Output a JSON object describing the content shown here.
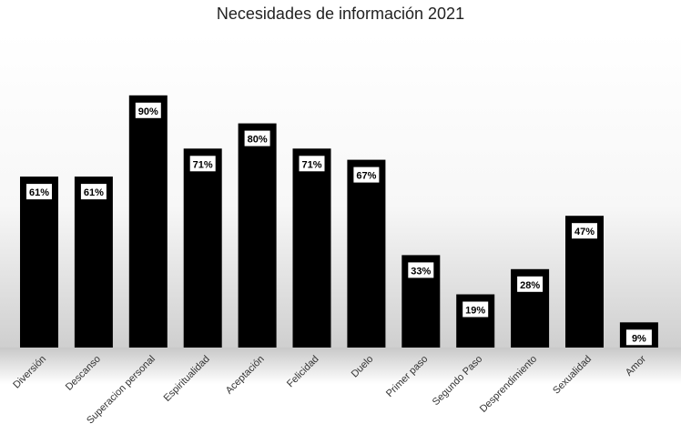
{
  "chart_data": {
    "type": "bar",
    "title": "Necesidades de información 2021",
    "xlabel": "",
    "ylabel": "",
    "ylim": [
      0,
      100
    ],
    "grid": false,
    "legend": "none",
    "categories": [
      "Diversión",
      "Descanso",
      "Superacion personal",
      "Espiritualidad",
      "Aceptación",
      "Felicidad",
      "Duelo",
      "Primer paso",
      "Segundo Paso",
      "Desprendimiento",
      "Sexualidad",
      "Amor"
    ],
    "values": [
      61,
      61,
      90,
      71,
      80,
      71,
      67,
      33,
      19,
      28,
      47,
      9
    ],
    "data_labels": [
      "61%",
      "61%",
      "90%",
      "71%",
      "80%",
      "71%",
      "67%",
      "33%",
      "19%",
      "28%",
      "47%",
      "9%"
    ],
    "bar_color": "#000000",
    "label_box_color": "#ffffff"
  }
}
